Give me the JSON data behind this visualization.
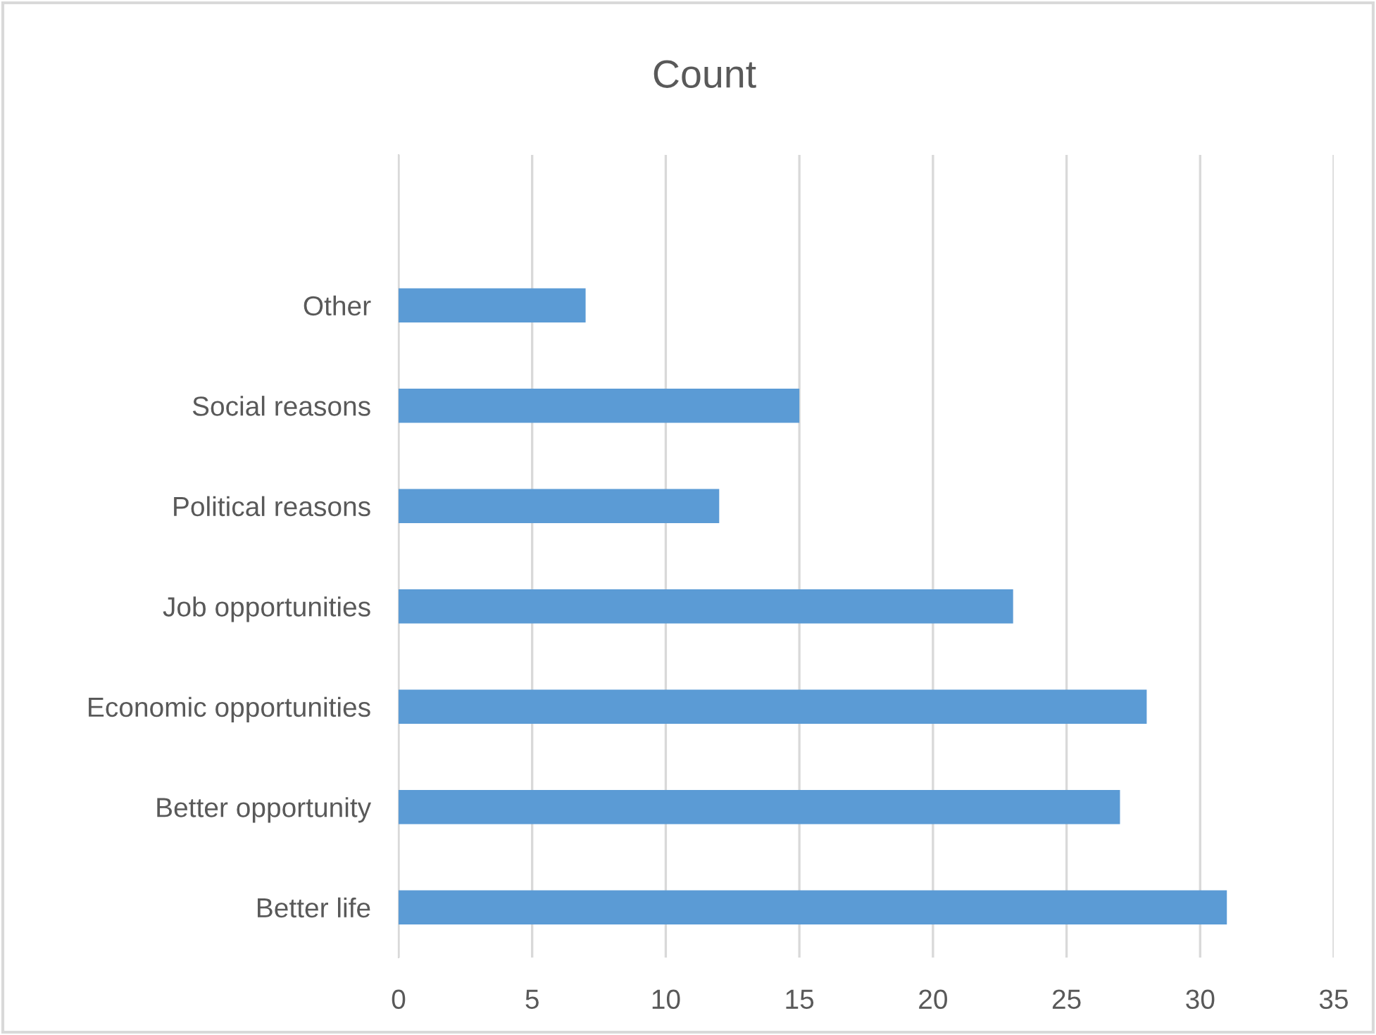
{
  "chart_data": {
    "type": "bar",
    "orientation": "horizontal",
    "title": "Count",
    "categories": [
      null,
      "Other",
      "Social reasons",
      "Political reasons",
      "Job opportunities",
      "Economic opportunities",
      "Better opportunity",
      "Better life"
    ],
    "values": [
      null,
      7,
      15,
      12,
      23,
      28,
      27,
      31
    ],
    "color": "#5b9bd5",
    "xlim": [
      0,
      35
    ],
    "xticks": [
      0,
      5,
      10,
      15,
      20,
      25,
      30,
      35
    ],
    "grid": "x",
    "legend": false
  }
}
